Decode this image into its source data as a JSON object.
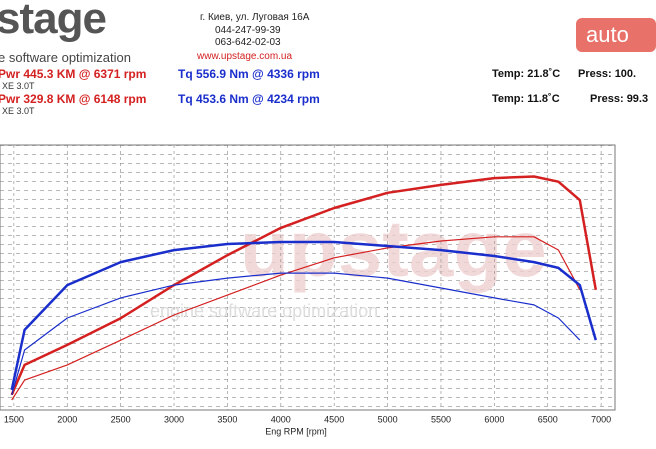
{
  "header": {
    "logo": "stage",
    "tagline": "e software optimization",
    "address": [
      "г. Киев, ул. Луговая 16А",
      "044-247-99-39",
      "063-642-02-03"
    ],
    "site": "www.upstage.com.ua",
    "watermark": "auto",
    "run1": {
      "pwr": "Pwr 445.3 KM @ 6371 rpm",
      "car": "XE 3.0T",
      "tq": "Tq 556.9 Nm @ 4336 rpm",
      "temp": "Temp: 21.8˚C",
      "press": "Press: 100."
    },
    "run2": {
      "pwr": "Pwr 329.8 KM @ 6148 rpm",
      "car": "XE 3.0T",
      "tq": "Tq 453.6 Nm @ 4234 rpm",
      "temp": "Temp: 11.8˚C",
      "press": "Press: 99.3"
    },
    "chart_watermark": "upstage",
    "chart_watermark_sub": "engine software optimization"
  },
  "chart_data": {
    "type": "line",
    "x_label": "Eng RPM [rpm]",
    "x": [
      1480,
      1600,
      2000,
      2500,
      3000,
      3500,
      4000,
      4500,
      5000,
      5500,
      6000,
      6371,
      6600,
      6800,
      6950
    ],
    "xlim": [
      1370,
      7130
    ],
    "xticks": [
      1500,
      2000,
      2500,
      3000,
      3500,
      4000,
      4500,
      5000,
      5500,
      6000,
      6500,
      7000
    ],
    "ylim": [
      0,
      505
    ],
    "y2lim": [
      -20,
      890
    ],
    "series": [
      {
        "color": "#d42020",
        "width": 2.5,
        "values": [
          29,
          86,
          124,
          175,
          238,
          295,
          347,
          385,
          414,
          429,
          442,
          445,
          435,
          400,
          229
        ]
      },
      {
        "color": "#d42020",
        "width": 1.2,
        "values": [
          19,
          57,
          86,
          133,
          181,
          219,
          257,
          290,
          309,
          322,
          330,
          330,
          305,
          229,
          null
        ]
      },
      {
        "color": "#1a2ecc",
        "width": 2.5,
        "axis": "y2",
        "values": [
          49,
          255,
          409,
          488,
          529,
          550,
          557,
          557,
          543,
          529,
          509,
          488,
          468,
          409,
          220
        ]
      },
      {
        "color": "#1a2ecc",
        "width": 1.2,
        "axis": "y2",
        "values": [
          32,
          186,
          296,
          365,
          409,
          433,
          450,
          450,
          433,
          399,
          365,
          341,
          296,
          220,
          null
        ]
      }
    ]
  }
}
